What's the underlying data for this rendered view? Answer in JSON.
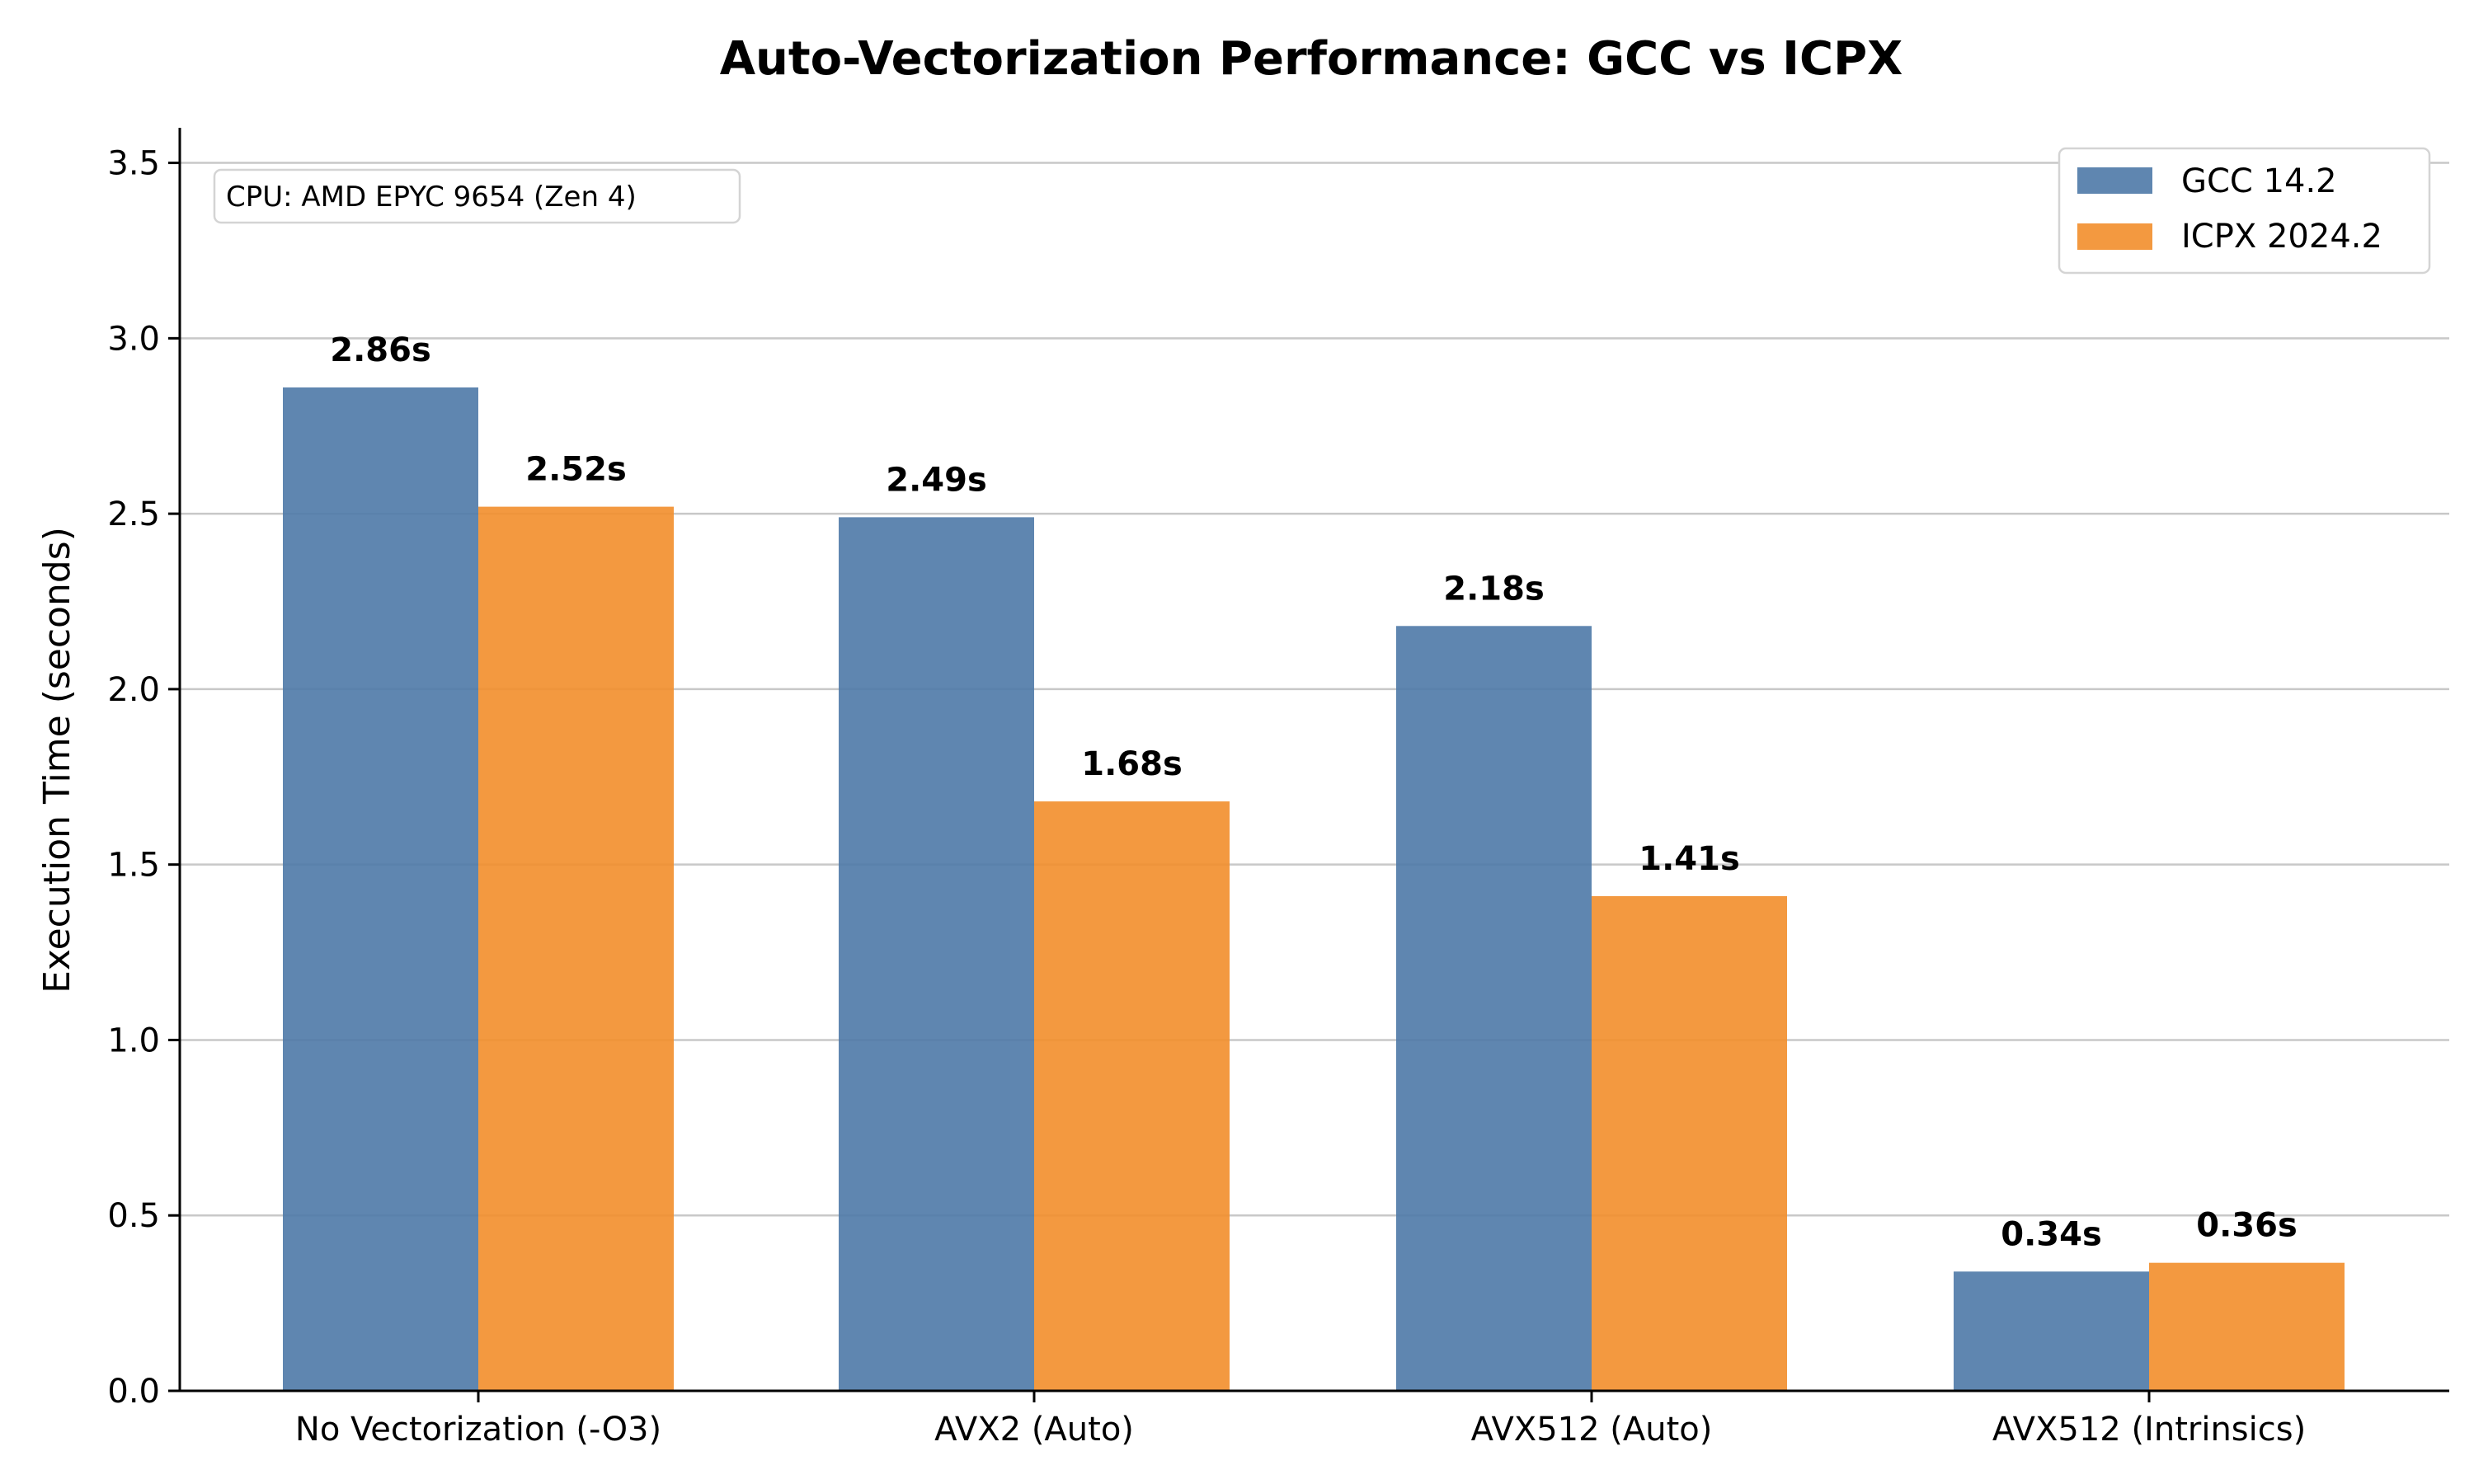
{
  "chart_data": {
    "type": "bar",
    "title": "Auto-Vectorization Performance: GCC vs ICPX",
    "xlabel": "",
    "ylabel": "Execution Time (seconds)",
    "ylim": [
      0,
      3.6
    ],
    "yticks": [
      0.0,
      0.5,
      1.0,
      1.5,
      2.0,
      2.5,
      3.0,
      3.5
    ],
    "ytick_labels": [
      "0.0",
      "0.5",
      "1.0",
      "1.5",
      "2.0",
      "2.5",
      "3.0",
      "3.5"
    ],
    "grid": "y",
    "categories": [
      "No Vectorization (-O3)",
      "AVX2 (Auto)",
      "AVX512 (Auto)",
      "AVX512 (Intrinsics)"
    ],
    "series": [
      {
        "name": "GCC 14.2",
        "color": "#4e79a7",
        "values": [
          2.86,
          2.49,
          2.18,
          0.34
        ],
        "labels": [
          "2.86s",
          "2.49s",
          "2.18s",
          "0.34s"
        ]
      },
      {
        "name": "ICPX 2024.2",
        "color": "#f28e2b",
        "values": [
          2.52,
          1.68,
          1.41,
          0.365
        ],
        "labels": [
          "2.52s",
          "1.68s",
          "1.41s",
          "0.36s"
        ]
      }
    ],
    "legend_position": "top-right",
    "annotation": "CPU: AMD EPYC 9654 (Zen 4)"
  }
}
